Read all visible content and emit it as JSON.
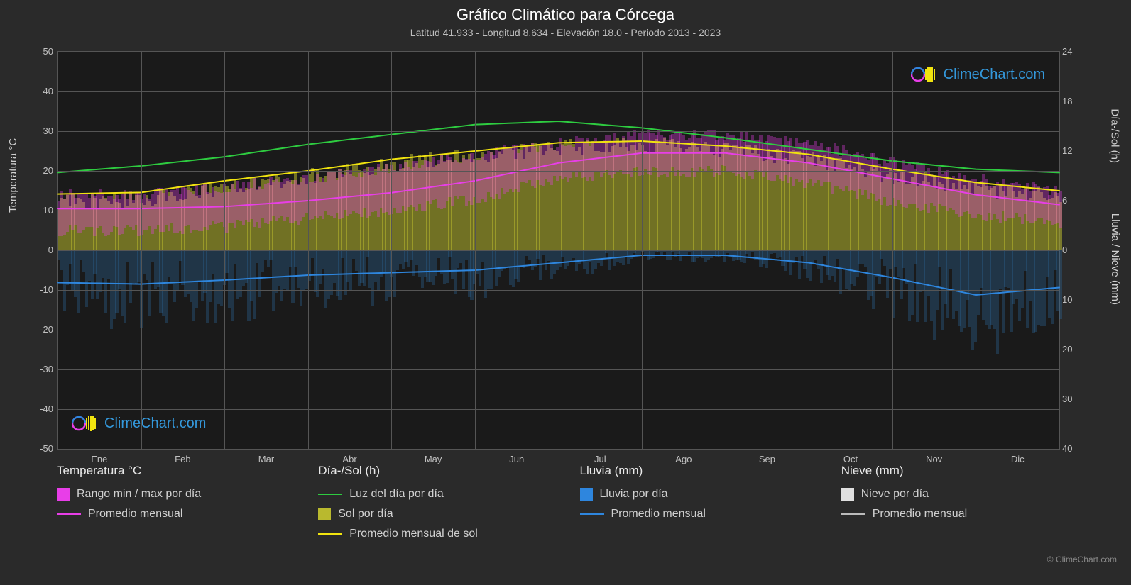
{
  "title": "Gráfico Climático para Córcega",
  "subtitle": "Latitud 41.933 - Longitud 8.634 - Elevación 18.0 - Periodo 2013 - 2023",
  "watermark": "ClimeChart.com",
  "copyright": "© ClimeChart.com",
  "chart": {
    "type": "climate-composite",
    "background_color": "#1a1a1a",
    "page_background": "#2a2a2a",
    "grid_color": "#555555",
    "text_color": "#c0c0c0",
    "months": [
      "Ene",
      "Feb",
      "Mar",
      "Abr",
      "May",
      "Jun",
      "Jul",
      "Ago",
      "Sep",
      "Oct",
      "Nov",
      "Dic"
    ],
    "y_left": {
      "label": "Temperatura °C",
      "min": -50,
      "max": 50,
      "step": 10
    },
    "y_right_top": {
      "label": "Día-/Sol (h)",
      "min": 0,
      "max": 24,
      "step": 6
    },
    "y_right_bottom": {
      "label": "Lluvia / Nieve (mm)",
      "min": 0,
      "max": 40,
      "step": 10
    },
    "series": {
      "daylight": {
        "color": "#2ecc40",
        "stroke_width": 2,
        "values": [
          9.4,
          10.2,
          11.3,
          12.8,
          14.0,
          15.2,
          15.6,
          14.8,
          13.6,
          12.2,
          10.8,
          9.8,
          9.4
        ]
      },
      "sun_avg": {
        "color": "#f1e40f",
        "stroke_width": 2,
        "values": [
          6.8,
          7.0,
          8.4,
          9.6,
          11.0,
          12.0,
          13.0,
          13.2,
          12.6,
          11.6,
          9.8,
          8.2,
          7.2
        ]
      },
      "temp_avg": {
        "color": "#e83ee8",
        "stroke_width": 2,
        "values": [
          10.5,
          10.5,
          11.0,
          12.5,
          14.5,
          17.5,
          22.0,
          24.5,
          24.5,
          22.0,
          18.0,
          14.0,
          11.5
        ]
      },
      "rain_avg": {
        "color": "#2e86de",
        "stroke_width": 2,
        "values": [
          6.5,
          6.8,
          6.0,
          5.0,
          4.5,
          4.0,
          2.5,
          1.0,
          1.0,
          2.5,
          5.5,
          9.0,
          7.5
        ]
      },
      "temp_range_band": {
        "color": "#e83ee8",
        "opacity": 0.35,
        "low": [
          5,
          5,
          6,
          8,
          10,
          13,
          18,
          20,
          20,
          17,
          12,
          9,
          7
        ],
        "high": [
          14,
          14,
          16,
          18,
          21,
          24,
          27,
          29,
          29,
          27,
          22,
          18,
          15
        ]
      },
      "sun_bars": {
        "color": "#b9b92e",
        "opacity": 0.55,
        "values": [
          6.0,
          6.2,
          7.5,
          9.0,
          10.5,
          11.5,
          12.5,
          12.8,
          12.2,
          11.0,
          9.0,
          7.5,
          6.5
        ]
      },
      "rain_bars": {
        "color": "#2e6b9e",
        "opacity": 0.35
      },
      "snow_bars": {
        "color": "#e0e0e0"
      }
    }
  },
  "legend": {
    "groups": [
      {
        "title": "Temperatura °C",
        "items": [
          {
            "kind": "swatch",
            "color": "#e83ee8",
            "label": "Rango min / max por día"
          },
          {
            "kind": "line",
            "color": "#e83ee8",
            "label": "Promedio mensual"
          }
        ]
      },
      {
        "title": "Día-/Sol (h)",
        "items": [
          {
            "kind": "line",
            "color": "#2ecc40",
            "label": "Luz del día por día"
          },
          {
            "kind": "swatch",
            "color": "#b9b92e",
            "label": "Sol por día"
          },
          {
            "kind": "line",
            "color": "#f1e40f",
            "label": "Promedio mensual de sol"
          }
        ]
      },
      {
        "title": "Lluvia (mm)",
        "items": [
          {
            "kind": "swatch",
            "color": "#2e86de",
            "label": "Lluvia por día"
          },
          {
            "kind": "line",
            "color": "#2e86de",
            "label": "Promedio mensual"
          }
        ]
      },
      {
        "title": "Nieve (mm)",
        "items": [
          {
            "kind": "swatch",
            "color": "#e0e0e0",
            "label": "Nieve por día"
          },
          {
            "kind": "line",
            "color": "#bbbbbb",
            "label": "Promedio mensual"
          }
        ]
      }
    ]
  }
}
